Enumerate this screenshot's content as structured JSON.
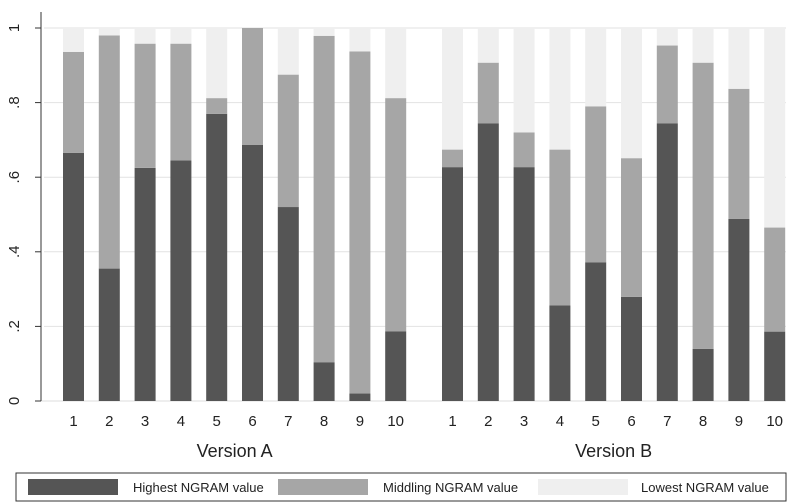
{
  "chart_data": {
    "type": "bar",
    "stacked": true,
    "grid": true,
    "legend_position": "bottom",
    "ylim": [
      0,
      1
    ],
    "y_ticks": [
      "0",
      ".2",
      ".4",
      ".6",
      ".8",
      "1"
    ],
    "y_tick_values": [
      0,
      0.2,
      0.4,
      0.6,
      0.8,
      1
    ],
    "colors": [
      "#555555",
      "#a6a6a6",
      "#efefef"
    ],
    "series": [
      {
        "name": "Highest NGRAM value"
      },
      {
        "name": "Middling NGRAM value"
      },
      {
        "name": "Lowest NGRAM value"
      }
    ],
    "groups": [
      {
        "label": "Version A",
        "categories": [
          "1",
          "2",
          "3",
          "4",
          "5",
          "6",
          "7",
          "8",
          "9",
          "10"
        ],
        "highest": [
          0.665,
          0.355,
          0.625,
          0.645,
          0.77,
          0.687,
          0.52,
          0.104,
          0.02,
          0.187
        ],
        "middling": [
          0.271,
          0.625,
          0.333,
          0.313,
          0.042,
          0.313,
          0.355,
          0.875,
          0.917,
          0.625
        ],
        "lowest": [
          0.064,
          0.02,
          0.042,
          0.042,
          0.188,
          0.0,
          0.125,
          0.021,
          0.063,
          0.188
        ]
      },
      {
        "label": "Version B",
        "categories": [
          "1",
          "2",
          "3",
          "4",
          "5",
          "6",
          "7",
          "8",
          "9",
          "10"
        ],
        "highest": [
          0.627,
          0.744,
          0.627,
          0.256,
          0.372,
          0.279,
          0.744,
          0.14,
          0.488,
          0.186
        ],
        "middling": [
          0.047,
          0.163,
          0.093,
          0.418,
          0.418,
          0.372,
          0.209,
          0.767,
          0.349,
          0.279
        ],
        "lowest": [
          0.326,
          0.093,
          0.28,
          0.326,
          0.21,
          0.349,
          0.047,
          0.093,
          0.163,
          0.535
        ]
      }
    ]
  }
}
